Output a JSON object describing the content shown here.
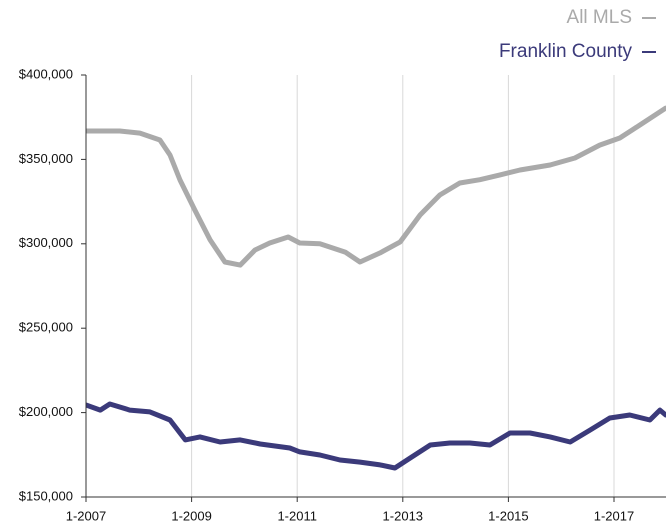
{
  "chart_data": {
    "type": "line",
    "x_series": "per-series",
    "xlim": [
      2007,
      2018
    ],
    "xticks": [
      {
        "value": 2007,
        "label": "1-2007"
      },
      {
        "value": 2009,
        "label": "1-2009"
      },
      {
        "value": 2011,
        "label": "1-2011"
      },
      {
        "value": 2013,
        "label": "1-2013"
      },
      {
        "value": 2015,
        "label": "1-2015"
      },
      {
        "value": 2017,
        "label": "1-2017"
      }
    ],
    "ylim": [
      150000,
      400000
    ],
    "yticks": [
      {
        "value": 150000,
        "label": "$150,000"
      },
      {
        "value": 200000,
        "label": "$200,000"
      },
      {
        "value": 250000,
        "label": "$250,000"
      },
      {
        "value": 300000,
        "label": "$300,000"
      },
      {
        "value": 350000,
        "label": "$350,000"
      },
      {
        "value": 400000,
        "label": "$400,000"
      }
    ],
    "grid": true,
    "legend": "top-right",
    "series": [
      {
        "name": "All MLS",
        "color": "#aaaaaa",
        "x": [
          2007.0,
          2007.64,
          2008.02,
          2008.4,
          2008.59,
          2008.78,
          2009.06,
          2009.35,
          2009.63,
          2009.92,
          2010.2,
          2010.48,
          2010.83,
          2011.05,
          2011.43,
          2011.91,
          2012.19,
          2012.57,
          2012.95,
          2013.33,
          2013.7,
          2014.08,
          2014.46,
          2014.84,
          2015.22,
          2015.79,
          2016.26,
          2016.73,
          2017.11,
          2017.49,
          2017.98
        ],
        "values": [
          366800,
          366800,
          365600,
          361500,
          352600,
          337800,
          320000,
          302300,
          289200,
          287400,
          296300,
          300500,
          304000,
          300500,
          300000,
          295100,
          289200,
          294600,
          301100,
          317100,
          328900,
          336000,
          338000,
          340800,
          343700,
          346700,
          350800,
          358500,
          362700,
          370400,
          380400
        ]
      },
      {
        "name": "Franklin County",
        "color": "#3b3a7a",
        "x": [
          2007.0,
          2007.27,
          2007.45,
          2007.83,
          2008.21,
          2008.59,
          2008.88,
          2009.16,
          2009.54,
          2009.92,
          2010.3,
          2010.86,
          2011.05,
          2011.43,
          2011.81,
          2012.19,
          2012.57,
          2012.85,
          2013.14,
          2013.52,
          2013.89,
          2014.27,
          2014.65,
          2015.03,
          2015.41,
          2015.79,
          2016.17,
          2016.55,
          2016.92,
          2017.3,
          2017.68,
          2017.87,
          2017.98
        ],
        "values": [
          204500,
          201500,
          205100,
          201500,
          200400,
          195600,
          183800,
          185600,
          182600,
          183800,
          181400,
          179000,
          176700,
          174900,
          171900,
          170700,
          169000,
          167200,
          173100,
          180800,
          182000,
          182000,
          180800,
          187900,
          187900,
          185600,
          182600,
          189700,
          196800,
          198600,
          195600,
          201500,
          198600
        ]
      }
    ]
  }
}
